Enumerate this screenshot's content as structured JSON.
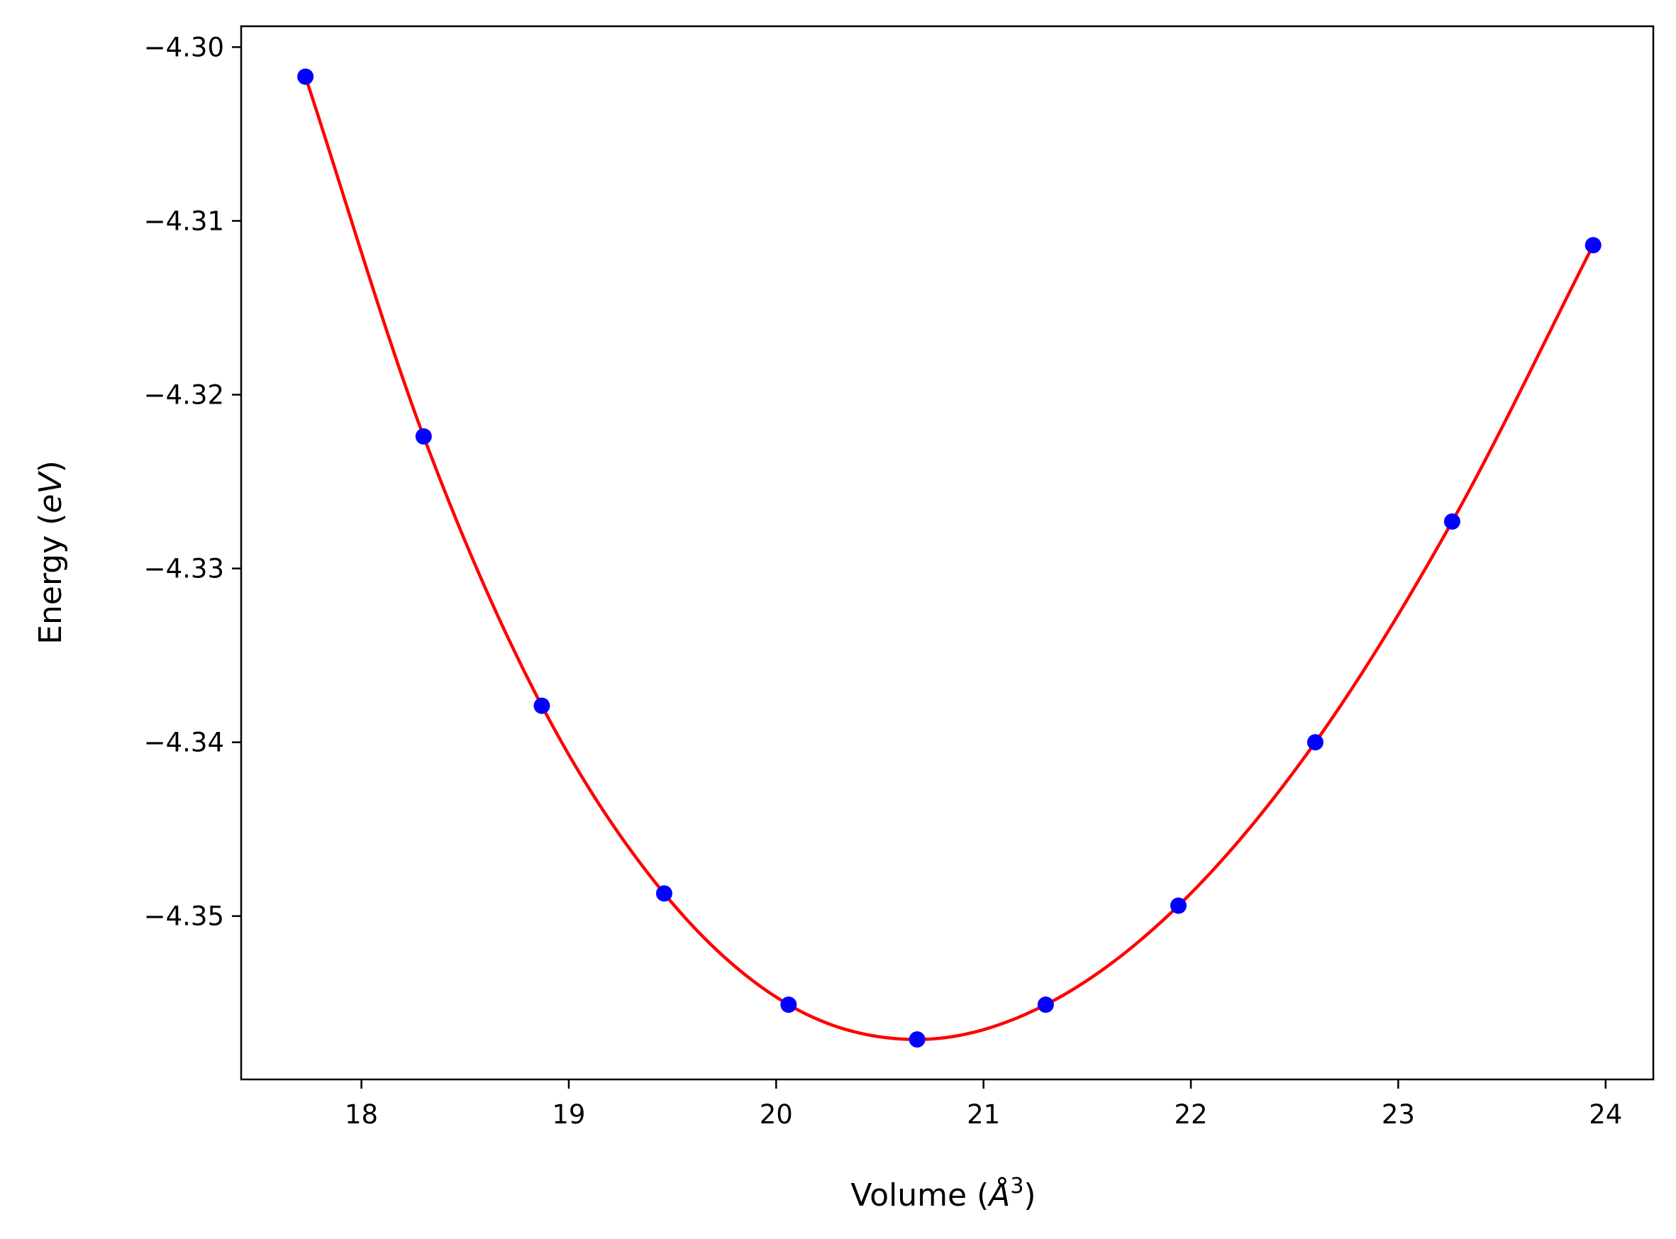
{
  "chart_data": {
    "type": "scatter",
    "xlabel": "Volume",
    "xlabel_unit": "Å",
    "xlabel_exp": "3",
    "ylabel": "Energy",
    "ylabel_unit": "eV",
    "xlim": [
      17.42,
      24.23
    ],
    "ylim": [
      -4.3594,
      -4.2988
    ],
    "xticks": [
      18,
      19,
      20,
      21,
      22,
      23,
      24
    ],
    "xtick_labels": [
      "18",
      "19",
      "20",
      "21",
      "22",
      "23",
      "24"
    ],
    "yticks": [
      -4.3,
      -4.31,
      -4.32,
      -4.33,
      -4.34,
      -4.35
    ],
    "ytick_labels": [
      "−4.30",
      "−4.31",
      "−4.32",
      "−4.33",
      "−4.34",
      "−4.35"
    ],
    "grid": false,
    "legend": "none",
    "series": [
      {
        "kind": "points",
        "color": "#0000ff",
        "x": [
          17.73,
          18.3,
          18.87,
          19.46,
          20.06,
          20.68,
          21.3,
          21.94,
          22.6,
          23.26,
          23.94
        ],
        "y": [
          -4.3017,
          -4.3224,
          -4.3379,
          -4.3487,
          -4.3551,
          -4.3571,
          -4.3551,
          -4.3494,
          -4.34,
          -4.3273,
          -4.3114
        ]
      },
      {
        "kind": "fit-curve",
        "color": "#ff0000"
      }
    ]
  }
}
